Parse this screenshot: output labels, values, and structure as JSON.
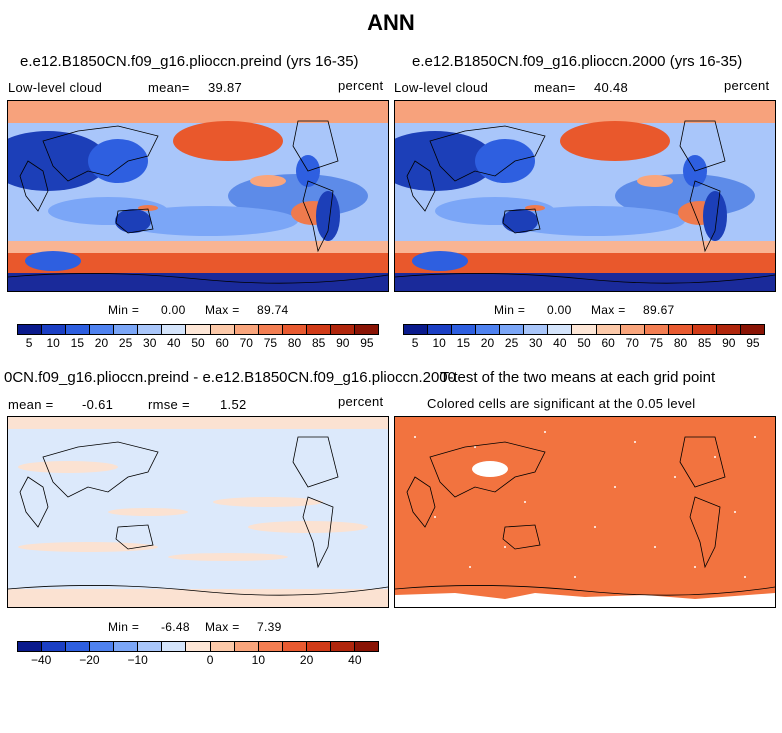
{
  "main_title": "ANN",
  "panels": {
    "top_left": {
      "title": "e.e12.B1850CN.f09_g16.plioccn.preind (yrs 16-35)",
      "left_label": "Low-level cloud",
      "mean_label": "mean=",
      "mean_value": "39.87",
      "units": "percent",
      "min_label": "Min =",
      "min_value": "0.00",
      "max_label": "Max =",
      "max_value": "89.74"
    },
    "top_right": {
      "title": "e.e12.B1850CN.f09_g16.plioccn.2000 (yrs 16-35)",
      "left_label": "Low-level cloud",
      "mean_label": "mean=",
      "mean_value": "40.48",
      "units": "percent",
      "min_label": "Min =",
      "min_value": "0.00",
      "max_label": "Max =",
      "max_value": "89.67"
    },
    "bottom_left": {
      "title": "0CN.f09_g16.plioccn.preind - e.e12.B1850CN.f09_g16.plioccn.2000",
      "mean_label": "mean =",
      "mean_value": "-0.61",
      "rmse_label": "rmse =",
      "rmse_value": "1.52",
      "units": "percent",
      "min_label": "Min =",
      "min_value": "-6.48",
      "max_label": "Max =",
      "max_value": "7.39"
    },
    "bottom_right": {
      "title": "T-test of the two means at each grid point",
      "subtitle": "Colored cells are significant at the 0.05 level"
    }
  },
  "colorbar_abs": {
    "colors": [
      "#0a1a8c",
      "#1b3fc4",
      "#2e5fe0",
      "#4f82f0",
      "#7ba6f7",
      "#a9c6fa",
      "#d4e4fb",
      "#fde6d6",
      "#fcc9a9",
      "#f9a57c",
      "#f37e52",
      "#e85a30",
      "#d13b18",
      "#b0260c",
      "#8a1405"
    ],
    "labels": [
      "5",
      "10",
      "15",
      "20",
      "25",
      "30",
      "40",
      "50",
      "60",
      "70",
      "75",
      "80",
      "85",
      "90",
      "95"
    ]
  },
  "colorbar_diff": {
    "colors": [
      "#0a1a8c",
      "#1b3fc4",
      "#2e5fe0",
      "#4f82f0",
      "#7ba6f7",
      "#a9c6fa",
      "#d4e4fb",
      "#fde6d6",
      "#fcc9a9",
      "#f9a57c",
      "#f37e52",
      "#e85a30",
      "#d13b18",
      "#b0260c",
      "#8a1405"
    ],
    "labels": [
      "−40",
      "−20",
      "−10",
      "0",
      "10",
      "20",
      "40"
    ]
  },
  "map_colors": {
    "ocean_low": "#3a66d9",
    "ocean_mid": "#bcd3f5",
    "land": "#1c3fb8",
    "stratocumulus": "#ef7a4d",
    "storm_track": "#e9582c",
    "antarctica": "#1a2a9a",
    "diff_base": "#dce9fb",
    "diff_pos": "#fbe2d2",
    "ttest": "#f2733f"
  }
}
